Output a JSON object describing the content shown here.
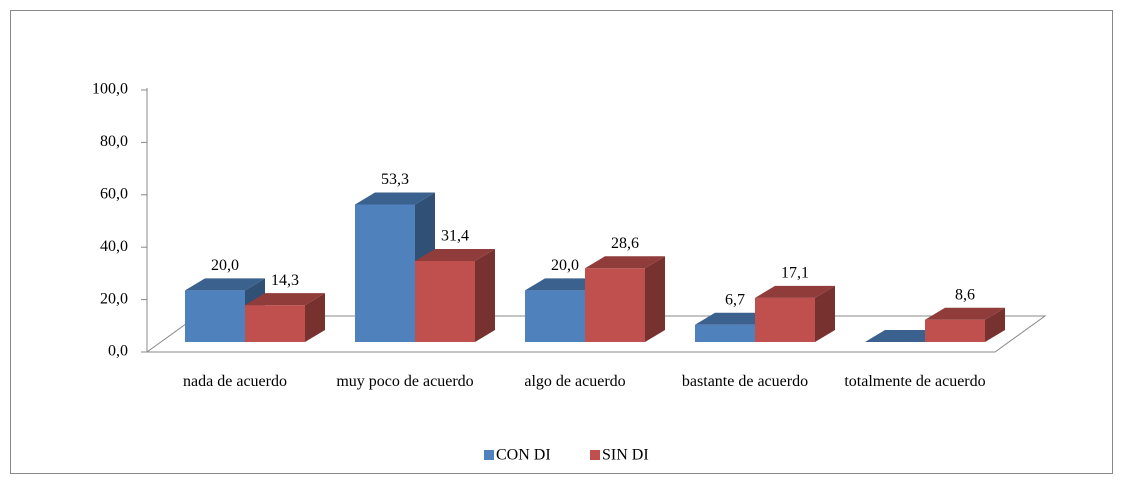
{
  "chart_data": {
    "type": "bar3d",
    "categories": [
      "nada de acuerdo",
      "muy poco de acuerdo",
      "algo de acuerdo",
      "bastante de acuerdo",
      "totalmente de acuerdo"
    ],
    "series": [
      {
        "name": "CON DI",
        "color": "#4f81bd",
        "values": [
          20.0,
          53.3,
          20.0,
          6.7,
          0
        ],
        "value_labels": [
          "20,0",
          "53,3",
          "20,0",
          "6,7",
          null
        ]
      },
      {
        "name": "SIN DI",
        "color": "#c0504d",
        "values": [
          14.3,
          31.4,
          28.6,
          17.1,
          8.6
        ],
        "value_labels": [
          "14,3",
          "31,4",
          "28,6",
          "17,1",
          "8,6"
        ]
      }
    ],
    "ylim": [
      0,
      100
    ],
    "yticks": [
      {
        "value": 0,
        "label": "0,0"
      },
      {
        "value": 20,
        "label": "20,0"
      },
      {
        "value": 40,
        "label": "40,0"
      },
      {
        "value": 60,
        "label": "60,0"
      },
      {
        "value": 80,
        "label": "80,0"
      },
      {
        "value": 100,
        "label": "100,0"
      }
    ],
    "grid": false,
    "legend": "bottom"
  }
}
